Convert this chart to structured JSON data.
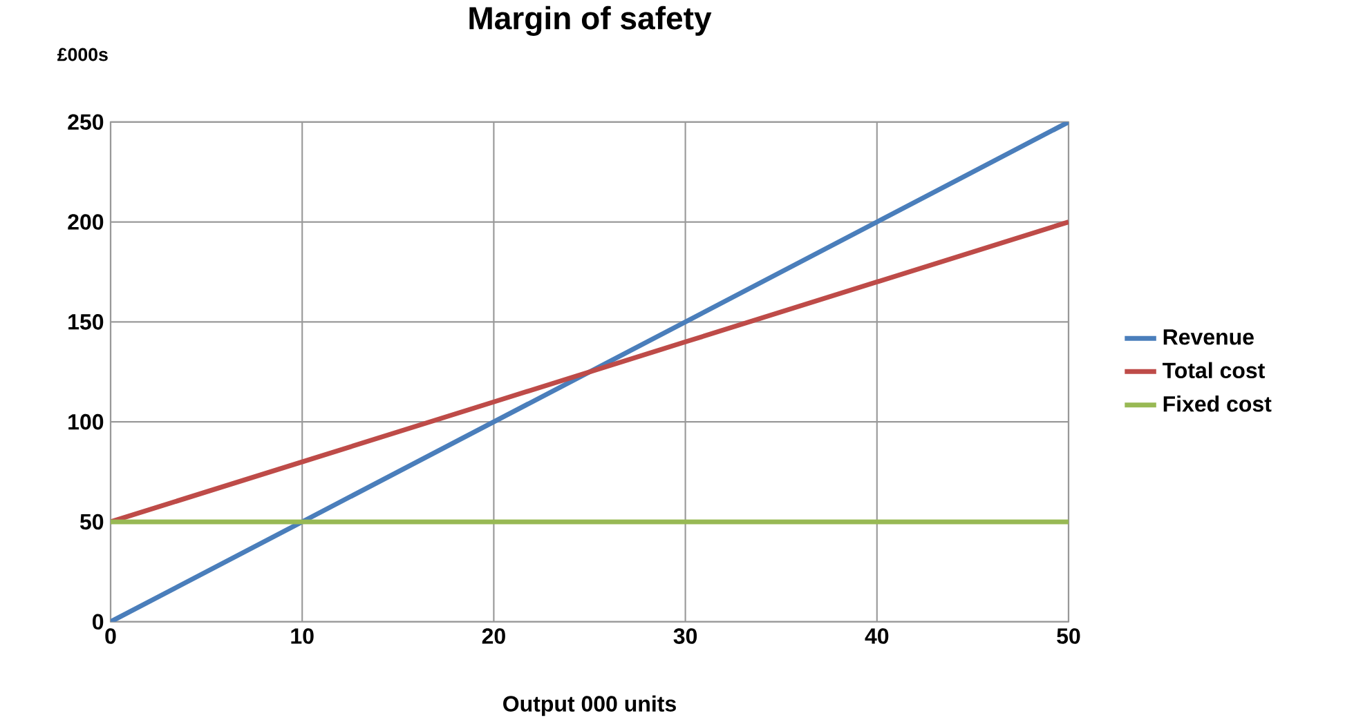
{
  "chart_data": {
    "type": "line",
    "title": "Margin of safety",
    "xlabel": "Output 000 units",
    "ylabel": "£000s",
    "x": [
      0,
      10,
      20,
      30,
      40,
      50
    ],
    "series": [
      {
        "name": "Revenue",
        "color": "#4a7ebb",
        "values": [
          0,
          50,
          100,
          150,
          200,
          250
        ]
      },
      {
        "name": "Total cost",
        "color": "#be4b48",
        "values": [
          50,
          80,
          110,
          140,
          170,
          200
        ]
      },
      {
        "name": "Fixed cost",
        "color": "#98b954",
        "values": [
          50,
          50,
          50,
          50,
          50,
          50
        ]
      }
    ],
    "xlim": [
      0,
      50
    ],
    "ylim": [
      0,
      250
    ],
    "xticks": [
      0,
      10,
      20,
      30,
      40,
      50
    ],
    "yticks": [
      0,
      50,
      100,
      150,
      200,
      250
    ],
    "grid": true,
    "legend": "right"
  }
}
